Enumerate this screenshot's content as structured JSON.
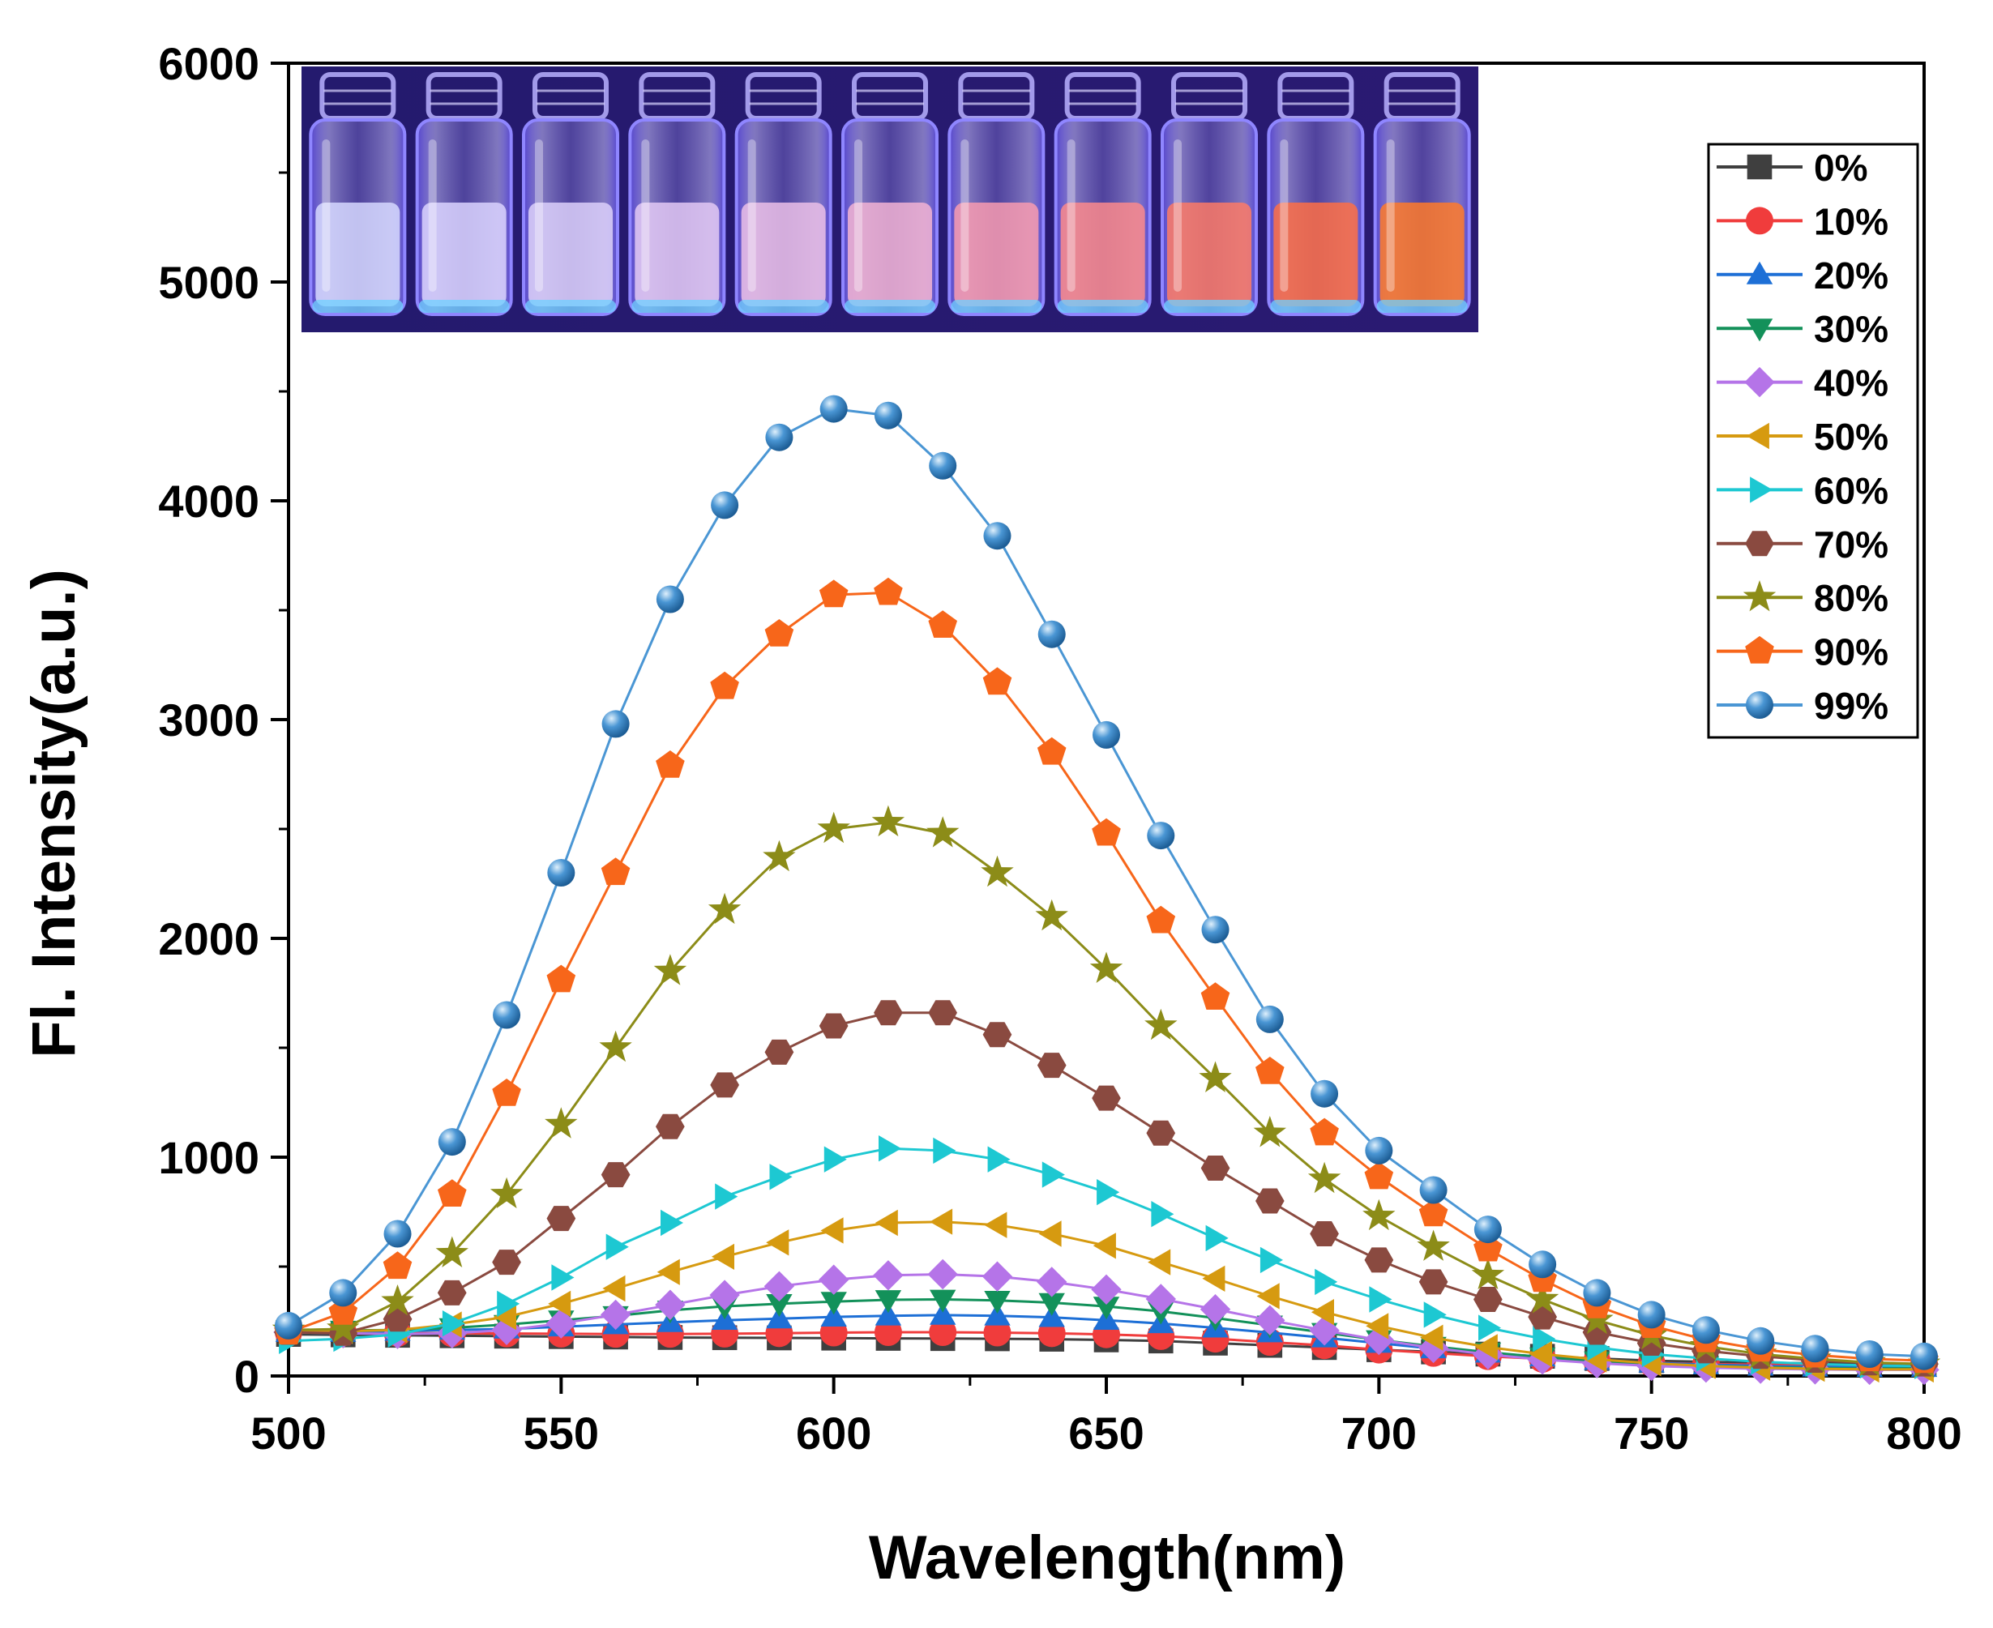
{
  "chart_data": {
    "type": "line",
    "title": "",
    "xlabel": "Wavelength(nm)",
    "ylabel": "Fl. Intensity(a.u.)",
    "xlim": [
      500,
      800
    ],
    "ylim": [
      0,
      6000
    ],
    "x_ticks": [
      500,
      550,
      600,
      650,
      700,
      750,
      800
    ],
    "y_ticks": [
      0,
      1000,
      2000,
      3000,
      4000,
      5000,
      6000
    ],
    "x_tick_labels": [
      "500",
      "550",
      "600",
      "650",
      "700",
      "750",
      "800"
    ],
    "y_tick_labels": [
      "0",
      "1000",
      "2000",
      "3000",
      "4000",
      "5000",
      "6000"
    ],
    "grid": false,
    "legend_position": "top-right",
    "inset": "photo of eleven glass vials glowing under UV light, from faint blue (left) to bright orange-red (right)",
    "x": [
      500,
      510,
      520,
      530,
      540,
      550,
      560,
      570,
      580,
      590,
      600,
      610,
      620,
      630,
      640,
      650,
      660,
      670,
      680,
      690,
      700,
      710,
      720,
      730,
      740,
      750,
      760,
      770,
      780,
      790,
      800
    ],
    "series": [
      {
        "name": "0%",
        "color": "#3f3f3f",
        "marker": "square",
        "values": [
          190,
          188,
          186,
          184,
          182,
          180,
          178,
          176,
          175,
          174,
          173,
          172,
          171,
          170,
          168,
          165,
          160,
          150,
          140,
          130,
          120,
          110,
          100,
          90,
          80,
          70,
          65,
          60,
          58,
          56,
          55
        ]
      },
      {
        "name": "10%",
        "color": "#f03c3c",
        "marker": "circle",
        "values": [
          200,
          198,
          196,
          195,
          194,
          193,
          192,
          192,
          193,
          195,
          198,
          200,
          200,
          198,
          195,
          190,
          182,
          170,
          155,
          140,
          120,
          105,
          90,
          78,
          68,
          60,
          55,
          52,
          50,
          48,
          55
        ]
      },
      {
        "name": "20%",
        "color": "#1d6fd6",
        "marker": "triangle-up",
        "values": [
          200,
          200,
          205,
          210,
          215,
          225,
          235,
          245,
          255,
          262,
          270,
          275,
          278,
          275,
          268,
          255,
          240,
          220,
          198,
          175,
          150,
          125,
          105,
          88,
          72,
          60,
          52,
          46,
          42,
          40,
          40
        ]
      },
      {
        "name": "30%",
        "color": "#13915a",
        "marker": "triangle-down",
        "values": [
          210,
          208,
          210,
          220,
          235,
          255,
          275,
          300,
          318,
          330,
          340,
          348,
          350,
          345,
          335,
          318,
          295,
          265,
          232,
          198,
          165,
          135,
          108,
          86,
          68,
          55,
          46,
          40,
          36,
          34,
          34
        ]
      },
      {
        "name": "40%",
        "color": "#b574e8",
        "marker": "diamond",
        "values": [
          200,
          195,
          192,
          195,
          210,
          240,
          280,
          325,
          370,
          410,
          440,
          460,
          465,
          455,
          430,
          395,
          352,
          305,
          255,
          208,
          165,
          128,
          98,
          75,
          58,
          46,
          38,
          33,
          30,
          28,
          28
        ]
      },
      {
        "name": "50%",
        "color": "#d69a10",
        "marker": "triangle-left",
        "values": [
          210,
          205,
          210,
          235,
          270,
          330,
          400,
          475,
          545,
          610,
          665,
          700,
          705,
          690,
          650,
          595,
          520,
          445,
          365,
          292,
          228,
          175,
          132,
          100,
          76,
          58,
          46,
          38,
          33,
          30,
          30
        ]
      },
      {
        "name": "60%",
        "color": "#1dc8d2",
        "marker": "triangle-right",
        "values": [
          160,
          170,
          190,
          240,
          330,
          450,
          590,
          700,
          820,
          910,
          990,
          1040,
          1030,
          990,
          920,
          840,
          740,
          630,
          530,
          430,
          350,
          280,
          220,
          170,
          130,
          100,
          80,
          65,
          55,
          48,
          45
        ]
      },
      {
        "name": "70%",
        "color": "#8a4a40",
        "marker": "hexagon",
        "values": [
          200,
          195,
          260,
          380,
          520,
          720,
          920,
          1140,
          1330,
          1480,
          1600,
          1660,
          1660,
          1560,
          1420,
          1270,
          1110,
          950,
          800,
          650,
          530,
          430,
          350,
          270,
          200,
          150,
          115,
          90,
          72,
          60,
          55
        ]
      },
      {
        "name": "80%",
        "color": "#8c8c18",
        "marker": "star",
        "values": [
          210,
          215,
          340,
          560,
          830,
          1150,
          1500,
          1850,
          2130,
          2370,
          2500,
          2530,
          2480,
          2300,
          2100,
          1860,
          1600,
          1360,
          1110,
          900,
          730,
          590,
          460,
          350,
          255,
          185,
          135,
          100,
          78,
          62,
          55
        ]
      },
      {
        "name": "90%",
        "color": "#f7661a",
        "marker": "pentagon",
        "values": [
          200,
          290,
          500,
          830,
          1290,
          1810,
          2300,
          2790,
          3150,
          3390,
          3570,
          3580,
          3430,
          3170,
          2850,
          2480,
          2080,
          1730,
          1390,
          1110,
          910,
          740,
          580,
          440,
          320,
          230,
          165,
          122,
          95,
          78,
          70
        ]
      },
      {
        "name": "99%",
        "color": "#4a96d4",
        "marker": "sphere",
        "values": [
          230,
          380,
          650,
          1070,
          1650,
          2300,
          2980,
          3550,
          3980,
          4290,
          4420,
          4390,
          4160,
          3840,
          3390,
          2930,
          2470,
          2040,
          1630,
          1290,
          1030,
          850,
          670,
          510,
          380,
          280,
          210,
          160,
          125,
          100,
          90
        ]
      }
    ]
  }
}
